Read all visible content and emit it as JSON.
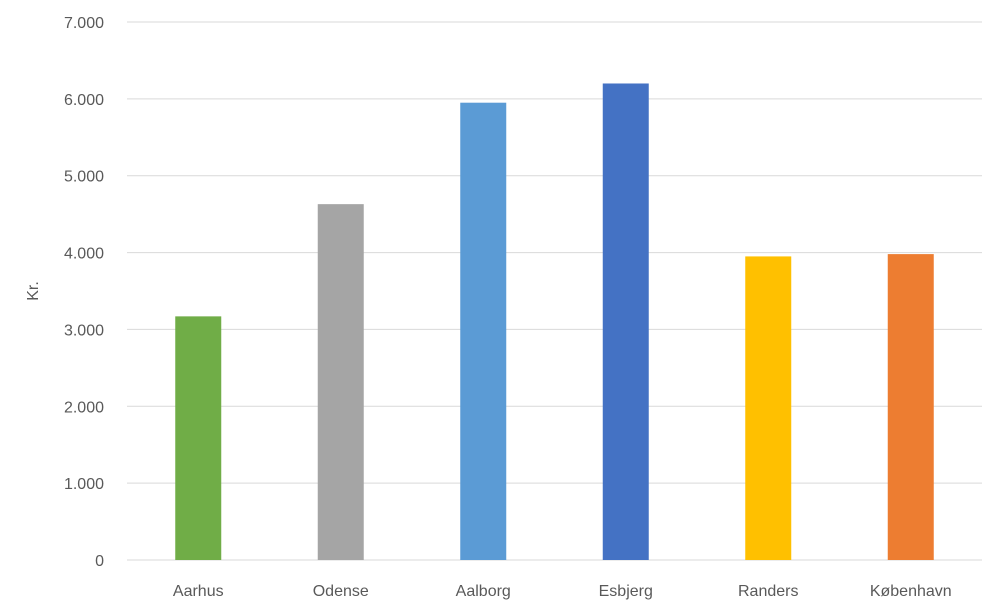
{
  "chart_data": {
    "type": "bar",
    "title": "",
    "xlabel": "",
    "ylabel": "Kr.",
    "categories": [
      "Aarhus",
      "Odense",
      "Aalborg",
      "Esbjerg",
      "Randers",
      "København"
    ],
    "values": [
      3170,
      4630,
      5950,
      6200,
      3950,
      3980
    ],
    "colors": [
      "#70ad47",
      "#a5a5a5",
      "#5b9bd5",
      "#4472c4",
      "#ffc000",
      "#ed7d31"
    ],
    "ylim": [
      0,
      7000
    ],
    "yticks": [
      0,
      1000,
      2000,
      3000,
      4000,
      5000,
      6000,
      7000
    ],
    "ytick_labels": [
      "0",
      "1.000",
      "2.000",
      "3.000",
      "4.000",
      "5.000",
      "6.000",
      "7.000"
    ],
    "grid": true,
    "legend": "none"
  }
}
